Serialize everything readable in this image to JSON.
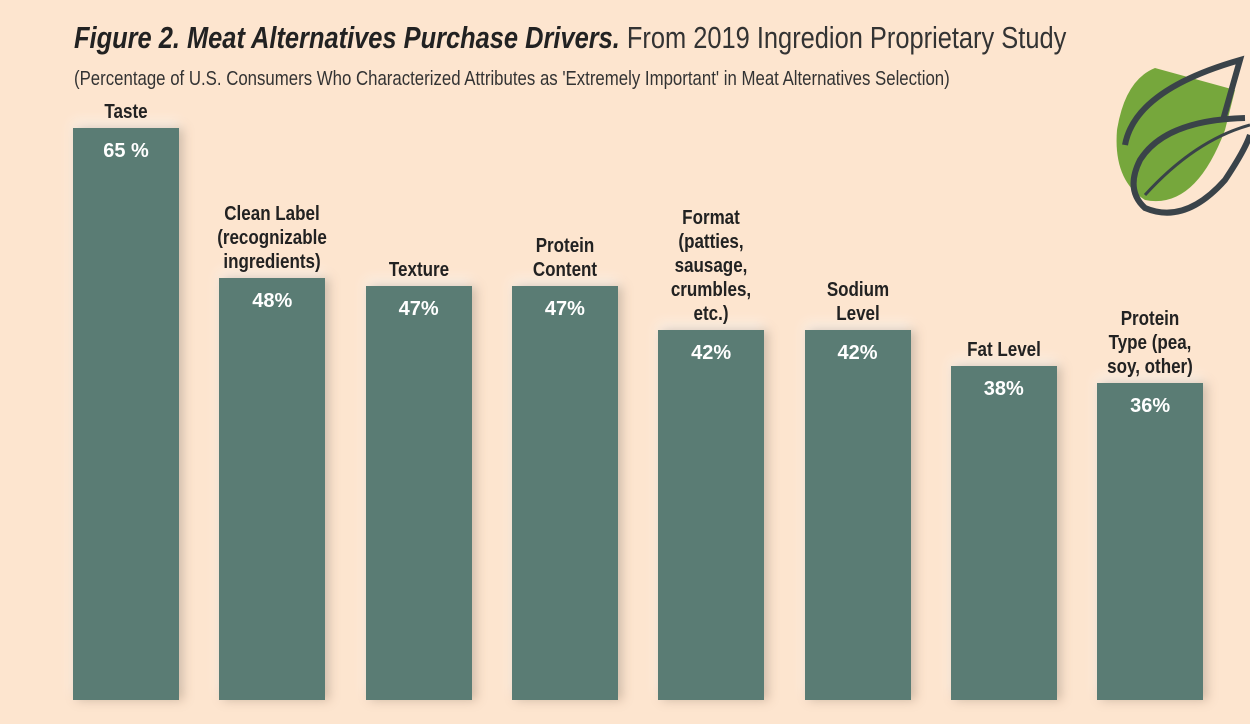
{
  "chart_data": {
    "type": "bar",
    "title_bold": "Figure 2. Meat Alternatives Purchase Drivers.",
    "title_regular": " From 2019 Ingredion Proprietary Study",
    "subtitle": "(Percentage of U.S. Consumers Who Characterized Attributes as 'Extremely Important' in Meat Alternatives Selection)",
    "categories": [
      [
        "Taste"
      ],
      [
        "Clean Label",
        "(recognizable",
        "ingredients)"
      ],
      [
        "Texture"
      ],
      [
        "Protein",
        "Content"
      ],
      [
        "Format",
        "(patties,",
        "sausage,",
        "crumbles,",
        "etc.)"
      ],
      [
        "Sodium",
        "Level"
      ],
      [
        "Fat Level"
      ],
      [
        "Protein",
        "Type (pea,",
        "soy, other)"
      ]
    ],
    "values": [
      65,
      48,
      47,
      47,
      42,
      42,
      38,
      36
    ],
    "value_labels": [
      "65 %",
      "48%",
      "47%",
      "47%",
      "42%",
      "42%",
      "38%",
      "36%"
    ],
    "ylim": [
      0,
      65
    ],
    "grid": false,
    "colors": {
      "bar": "#5a7c74",
      "background": "#fde5cf",
      "leaf_green": "#76a73c",
      "leaf_outline": "#3a4349"
    },
    "icon": "leaf-icon"
  }
}
